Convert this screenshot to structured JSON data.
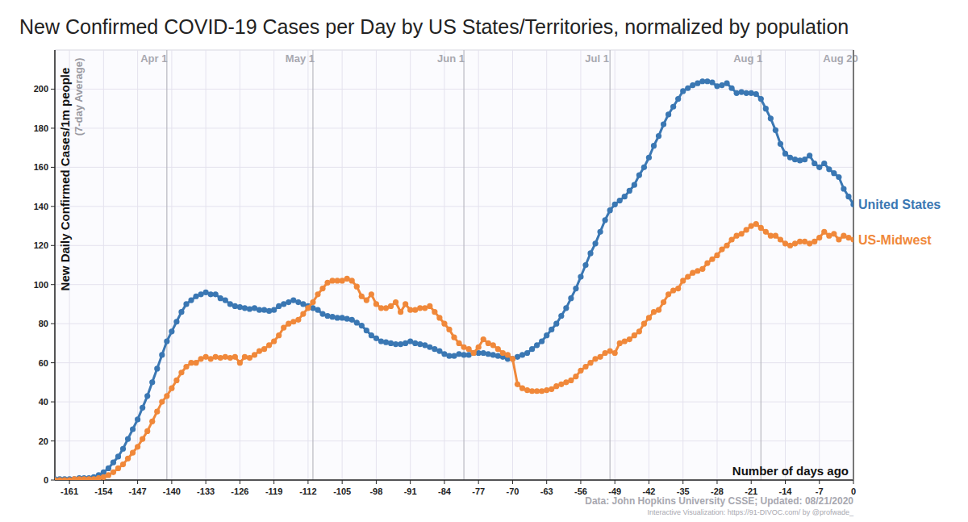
{
  "chart_data": {
    "type": "line",
    "title": "New Confirmed COVID-19 Cases per Day by US States/Territories, normalized by population",
    "ylabel": "New Daily Confirmed Cases/1m people",
    "ylabel_note": "(7-day Average)",
    "xlabel": "Number of days ago",
    "source": "Data: John Hopkins University CSSE; Updated: 08/21/2020",
    "credit": "Interactive Visualization: https://91-DIVOC.com/ by @profwade_",
    "annotations": [
      {
        "x": -141,
        "label": "Apr 1"
      },
      {
        "x": -111,
        "label": "May 1"
      },
      {
        "x": -80,
        "label": "Jun 1"
      },
      {
        "x": -50,
        "label": "Jul 1"
      },
      {
        "x": -19,
        "label": "Aug 1"
      },
      {
        "x": 0,
        "label": "Aug 20"
      }
    ],
    "x": [
      -164,
      -163,
      -162,
      -161,
      -160,
      -159,
      -158,
      -157,
      -156,
      -155,
      -154,
      -153,
      -152,
      -151,
      -150,
      -149,
      -148,
      -147,
      -146,
      -145,
      -144,
      -143,
      -142,
      -141,
      -140,
      -139,
      -138,
      -137,
      -136,
      -135,
      -134,
      -133,
      -132,
      -131,
      -130,
      -129,
      -128,
      -127,
      -126,
      -125,
      -124,
      -123,
      -122,
      -121,
      -120,
      -119,
      -118,
      -117,
      -116,
      -115,
      -114,
      -113,
      -112,
      -111,
      -110,
      -109,
      -108,
      -107,
      -106,
      -105,
      -104,
      -103,
      -102,
      -101,
      -100,
      -99,
      -98,
      -97,
      -96,
      -95,
      -94,
      -93,
      -92,
      -91,
      -90,
      -89,
      -88,
      -87,
      -86,
      -85,
      -84,
      -83,
      -82,
      -81,
      -80,
      -79,
      -78,
      -77,
      -76,
      -75,
      -74,
      -73,
      -72,
      -71,
      -70,
      -69,
      -68,
      -67,
      -66,
      -65,
      -64,
      -63,
      -62,
      -61,
      -60,
      -59,
      -58,
      -57,
      -56,
      -55,
      -54,
      -53,
      -52,
      -51,
      -50,
      -49,
      -48,
      -47,
      -46,
      -45,
      -44,
      -43,
      -42,
      -41,
      -40,
      -39,
      -38,
      -37,
      -36,
      -35,
      -34,
      -33,
      -32,
      -31,
      -30,
      -29,
      -28,
      -27,
      -26,
      -25,
      -24,
      -23,
      -22,
      -21,
      -20,
      -19,
      -18,
      -17,
      -16,
      -15,
      -14,
      -13,
      -12,
      -11,
      -10,
      -9,
      -8,
      -7,
      -6,
      -5,
      -4,
      -3,
      -2,
      -1,
      0
    ],
    "series": [
      {
        "name": "United States",
        "color": "#3a77b3",
        "marker": "circle",
        "line_style": "solid",
        "values": [
          0.5,
          0.5,
          0.5,
          0.5,
          0.5,
          1,
          1,
          1,
          1.5,
          2.5,
          4,
          6,
          9,
          12,
          16,
          21,
          26,
          31,
          37,
          43,
          50,
          57,
          64,
          71,
          76,
          81,
          86,
          90,
          92,
          94,
          95,
          96,
          95,
          95,
          93,
          92,
          90,
          89,
          88.5,
          88,
          87.5,
          88,
          87,
          87,
          86.5,
          87,
          89,
          90,
          91,
          92,
          91,
          90,
          89,
          88,
          87,
          85,
          84,
          83.5,
          83,
          83,
          82.5,
          82,
          80.5,
          79,
          76.5,
          74,
          72.5,
          71,
          70.5,
          70,
          69.5,
          69.5,
          70,
          71,
          70,
          69.5,
          69,
          68,
          67,
          66,
          64.5,
          63.5,
          63.5,
          64.5,
          64,
          64,
          65,
          65,
          65,
          64.5,
          64,
          63.5,
          63,
          62,
          62,
          63,
          64,
          65,
          67,
          69,
          71,
          74,
          77,
          80,
          84,
          88,
          93,
          98,
          104,
          110,
          116,
          121,
          127,
          133,
          138,
          141,
          143,
          145,
          148,
          151,
          156,
          160,
          165,
          171,
          176,
          182,
          187,
          191,
          195,
          199,
          200.5,
          202,
          203,
          204,
          204,
          203.5,
          201.5,
          202,
          203,
          200.5,
          198,
          198.5,
          198,
          198,
          197.5,
          195,
          190,
          185,
          179,
          172,
          167,
          165,
          164,
          163.5,
          164,
          166,
          162,
          160,
          162,
          159,
          157,
          155,
          149,
          145,
          141
        ]
      },
      {
        "name": "US-Midwest",
        "color": "#f0883a",
        "marker": "circle",
        "line_style": "solid",
        "values": [
          0,
          0,
          0,
          0,
          0.5,
          0.5,
          0.5,
          0.5,
          0.5,
          1,
          1.5,
          2.5,
          4,
          6,
          8,
          11,
          14,
          17,
          21,
          25,
          30,
          35,
          40,
          43,
          47,
          51,
          55,
          58,
          60,
          60,
          62,
          63,
          62,
          63,
          62.5,
          63,
          62.5,
          63,
          60,
          63,
          62.5,
          64,
          66,
          67,
          69,
          71,
          74,
          78,
          80,
          81,
          82,
          85,
          88,
          91,
          95,
          98,
          101,
          102,
          102,
          102,
          103,
          102,
          99,
          94,
          92,
          95,
          90,
          88,
          88,
          89,
          91,
          86,
          90,
          87,
          87,
          88,
          88,
          89,
          86,
          83,
          80,
          77,
          73,
          70,
          68,
          67,
          65,
          68,
          72,
          70,
          69,
          67,
          65,
          64,
          62,
          49,
          47,
          46,
          45.5,
          45.5,
          45.5,
          46,
          46.5,
          48,
          49,
          50,
          51,
          53,
          56,
          58,
          60,
          62,
          63,
          65,
          66,
          65,
          70,
          71,
          72,
          74,
          76,
          80,
          83,
          86,
          87,
          91,
          95,
          97,
          98,
          102,
          104,
          106,
          107,
          108,
          111,
          113,
          115,
          118,
          120,
          123,
          125,
          126,
          128,
          130,
          131,
          129,
          127,
          125,
          125,
          123,
          121,
          120,
          121,
          122,
          122,
          121,
          122,
          124,
          127,
          125,
          126,
          123,
          125,
          124,
          123
        ]
      }
    ],
    "xlim": [
      -164,
      0
    ],
    "ylim": [
      0,
      220
    ],
    "xticks": [
      -161,
      -154,
      -147,
      -140,
      -133,
      -126,
      -119,
      -112,
      -105,
      -98,
      -91,
      -84,
      -77,
      -70,
      -63,
      -56,
      -49,
      -42,
      -35,
      -28,
      -21,
      -14,
      -7,
      0
    ],
    "yticks": [
      0,
      20,
      40,
      60,
      80,
      100,
      120,
      140,
      160,
      180,
      200
    ],
    "grid": true,
    "legend": "right"
  }
}
